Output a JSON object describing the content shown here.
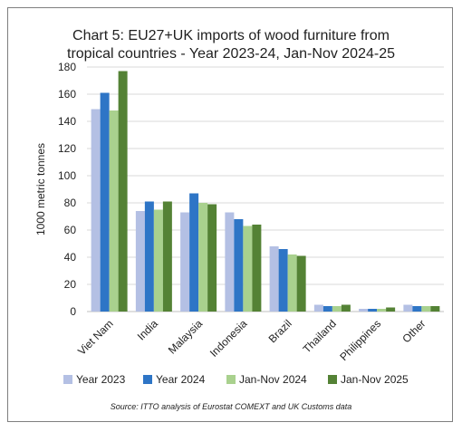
{
  "chart_data": {
    "type": "bar",
    "title_line1": "Chart 5: EU27+UK imports of wood furniture from",
    "title_line2": "tropical countries - Year 2023-24, Jan-Nov 2024-25",
    "ylabel": "1000 metric tonnes",
    "xlabel": "",
    "ylim": [
      0,
      180
    ],
    "yticks": [
      0,
      20,
      40,
      60,
      80,
      100,
      120,
      140,
      160,
      180
    ],
    "grid": true,
    "legend_position": "bottom",
    "categories": [
      "Viet Nam",
      "India",
      "Malaysia",
      "Indonesia",
      "Brazil",
      "Thailand",
      "Philippines",
      "Other"
    ],
    "series": [
      {
        "name": "Year 2023",
        "color": "#b4c0e4",
        "values": [
          149,
          74,
          73,
          73,
          48,
          5,
          2,
          5
        ]
      },
      {
        "name": "Year 2024",
        "color": "#2e75c6",
        "values": [
          161,
          81,
          87,
          68,
          46,
          4,
          2,
          4
        ]
      },
      {
        "name": "Jan-Nov 2024",
        "color": "#a9d18e",
        "values": [
          148,
          75,
          80,
          63,
          42,
          4,
          2,
          4
        ]
      },
      {
        "name": "Jan-Nov 2025",
        "color": "#548235",
        "values": [
          177,
          81,
          79,
          64,
          41,
          5,
          3,
          4
        ]
      }
    ],
    "source": "Source: ITTO analysis of Eurostat COMEXT and UK Customs data"
  }
}
